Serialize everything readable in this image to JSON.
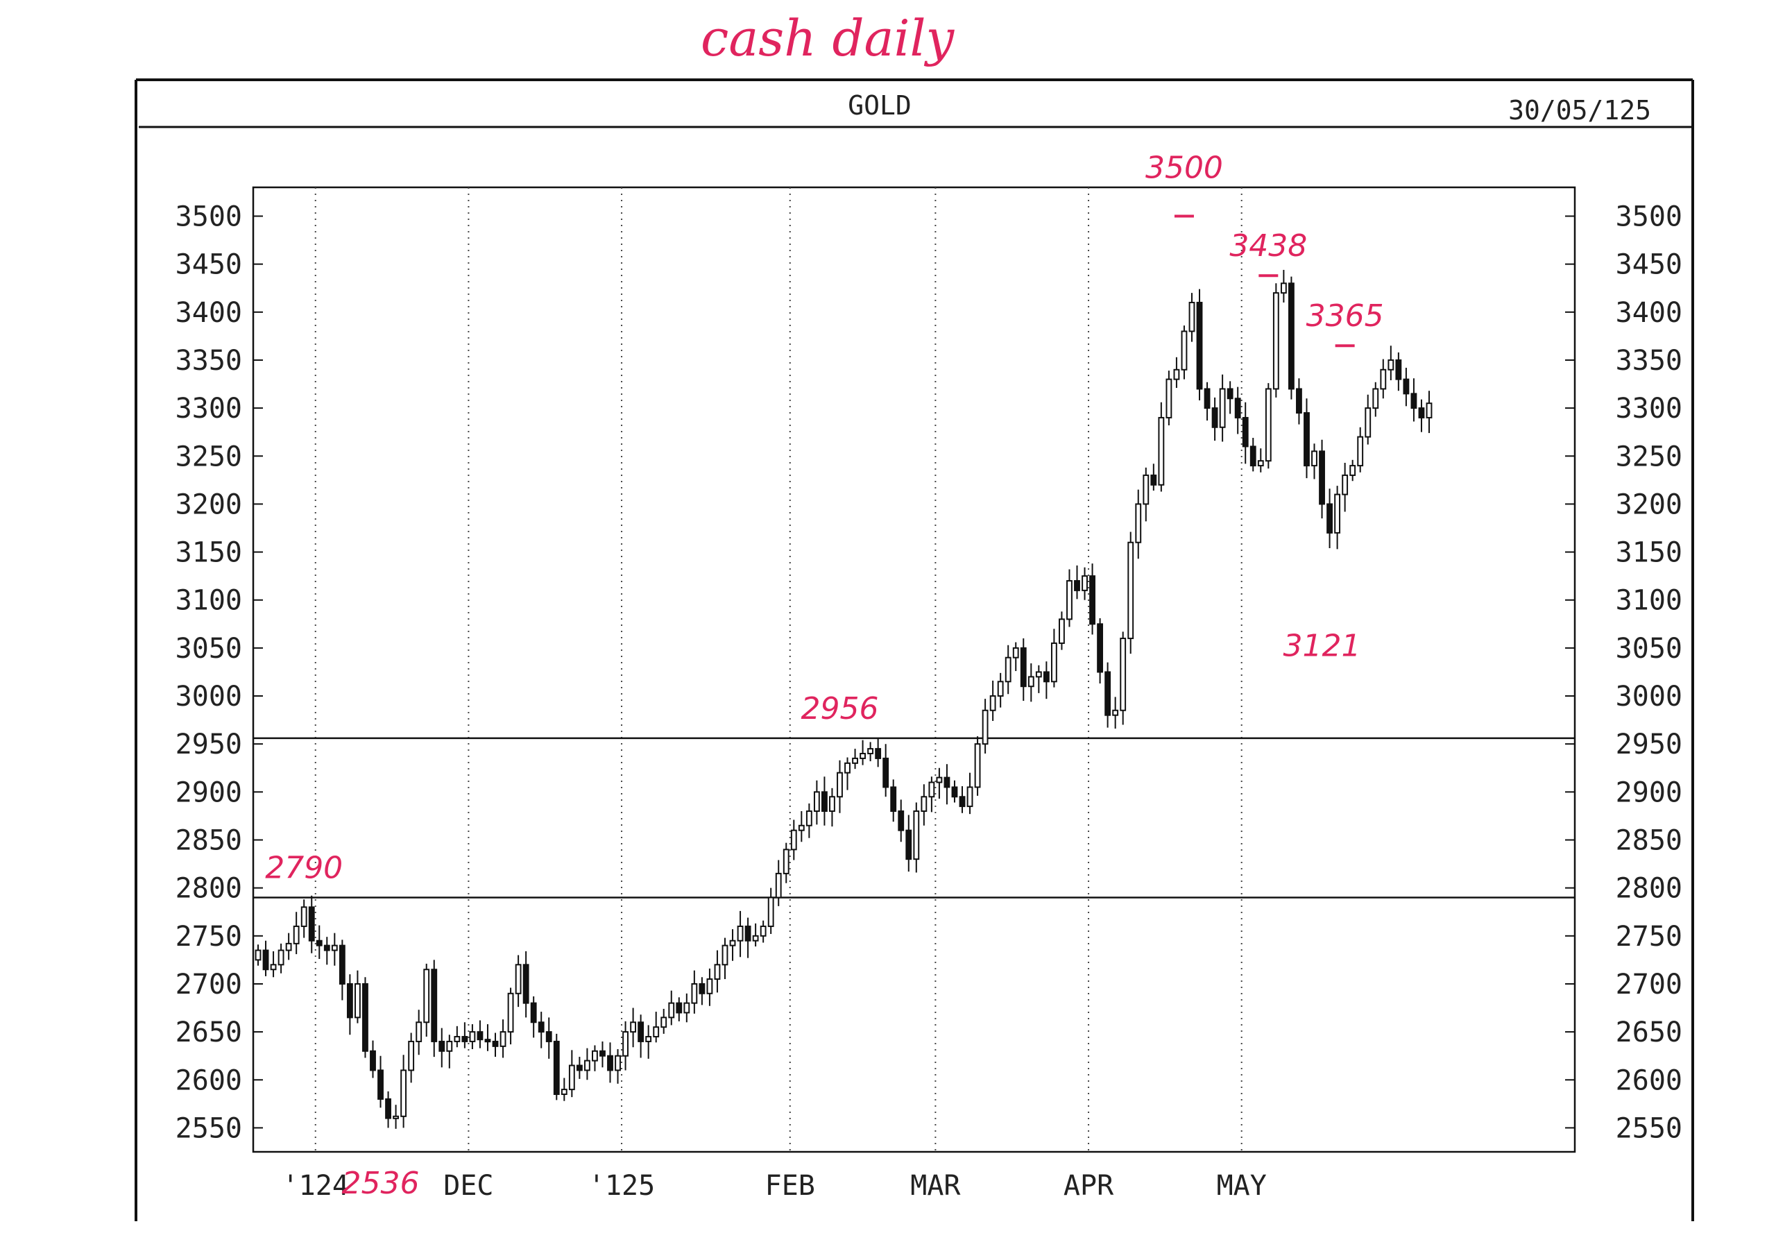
{
  "header": {
    "handwritten_title": "cash daily",
    "instrument": "GOLD",
    "date": "30/05/125"
  },
  "colors": {
    "ink": "#111111",
    "annotation": "#e0245e",
    "grid": "#444444"
  },
  "chart_data": {
    "type": "candlestick",
    "title": "GOLD",
    "ylim": [
      2525,
      3530
    ],
    "y_ticks": [
      3500,
      3450,
      3400,
      3350,
      3300,
      3250,
      3200,
      3150,
      3100,
      3050,
      3000,
      2950,
      2900,
      2850,
      2800,
      2750,
      2700,
      2650,
      2600,
      2550
    ],
    "y_tick_labels": [
      "3500",
      "3450",
      "3400",
      "3350",
      "3300",
      "3250",
      "3200",
      "3150",
      "3100",
      "3050",
      "3000",
      "2950",
      "2900",
      "2850",
      "2800",
      "2750",
      "2700",
      "2650",
      "2600",
      "2550"
    ],
    "x_labels": [
      {
        "label": "'124",
        "at": 7.5
      },
      {
        "label": "DEC",
        "at": 27.5
      },
      {
        "label": "'125",
        "at": 47.5
      },
      {
        "label": "FEB",
        "at": 69.5
      },
      {
        "label": "MAR",
        "at": 88.5
      },
      {
        "label": "APR",
        "at": 108.5
      },
      {
        "label": "MAY",
        "at": 128.5
      }
    ],
    "grid": "vertical dotted",
    "levels": [
      {
        "value": 2956,
        "label": "2956"
      },
      {
        "value": 2790,
        "label": "2790"
      }
    ],
    "annotations": [
      {
        "label": "2790",
        "x": 6,
        "y": 2790
      },
      {
        "label": "2536",
        "x": 16,
        "y": 2536
      },
      {
        "label": "2956",
        "x": 76,
        "y": 2956
      },
      {
        "label": "3500",
        "x": 121,
        "y": 3500
      },
      {
        "label": "3438",
        "x": 132,
        "y": 3438
      },
      {
        "label": "3365",
        "x": 142,
        "y": 3365
      },
      {
        "label": "3121",
        "x": 139,
        "y": 3121
      }
    ],
    "close_series": [
      2735,
      2715,
      2720,
      2735,
      2742,
      2760,
      2780,
      2745,
      2740,
      2735,
      2740,
      2700,
      2665,
      2700,
      2630,
      2610,
      2580,
      2560,
      2562,
      2610,
      2640,
      2660,
      2715,
      2640,
      2630,
      2640,
      2645,
      2640,
      2650,
      2642,
      2640,
      2635,
      2650,
      2690,
      2720,
      2680,
      2660,
      2650,
      2640,
      2585,
      2590,
      2615,
      2610,
      2620,
      2630,
      2625,
      2610,
      2625,
      2650,
      2660,
      2640,
      2645,
      2655,
      2665,
      2680,
      2670,
      2680,
      2700,
      2690,
      2705,
      2720,
      2740,
      2745,
      2760,
      2745,
      2750,
      2760,
      2790,
      2815,
      2840,
      2860,
      2865,
      2880,
      2900,
      2880,
      2895,
      2920,
      2930,
      2935,
      2940,
      2945,
      2935,
      2905,
      2880,
      2860,
      2830,
      2880,
      2895,
      2910,
      2915,
      2905,
      2895,
      2885,
      2905,
      2950,
      2985,
      3000,
      3015,
      3040,
      3050,
      3010,
      3020,
      3025,
      3015,
      3055,
      3080,
      3120,
      3110,
      3125,
      3075,
      3025,
      2980,
      2985,
      3060,
      3160,
      3200,
      3230,
      3220,
      3290,
      3330,
      3340,
      3380,
      3410,
      3320,
      3300,
      3280,
      3320,
      3310,
      3290,
      3260,
      3240,
      3245,
      3320,
      3420,
      3430,
      3320,
      3295,
      3240,
      3255,
      3200,
      3170,
      3210,
      3230,
      3240,
      3270,
      3300,
      3320,
      3340,
      3350,
      3330,
      3315,
      3300,
      3290,
      3305
    ]
  }
}
